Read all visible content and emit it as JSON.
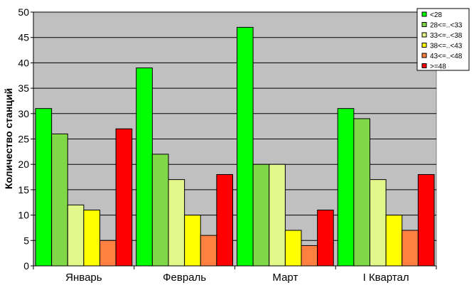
{
  "chart_data": {
    "type": "bar",
    "categories": [
      "Январь",
      "Февраль",
      "Март",
      "I Квартал"
    ],
    "series": [
      {
        "name": "<28",
        "color": "#00ff00",
        "values": [
          31,
          39,
          47,
          31
        ]
      },
      {
        "name": "28<=..<33",
        "color": "#80d848",
        "values": [
          26,
          22,
          20,
          29
        ]
      },
      {
        "name": "33<=..<38",
        "color": "#e2f88a",
        "values": [
          12,
          17,
          20,
          17
        ]
      },
      {
        "name": "38<=..<43",
        "color": "#ffff00",
        "values": [
          11,
          10,
          7,
          10
        ]
      },
      {
        "name": "43<=..<48",
        "color": "#ff8040",
        "values": [
          5,
          6,
          4,
          7
        ]
      },
      {
        "name": ">=48",
        "color": "#ff0000",
        "values": [
          27,
          18,
          11,
          18
        ]
      }
    ],
    "title": "",
    "xlabel": "",
    "ylabel": "Количество станций",
    "ylim": [
      0,
      50
    ],
    "yticks": [
      "0",
      "5",
      "10",
      "15",
      "20",
      "25",
      "30",
      "35",
      "40",
      "45",
      "50"
    ],
    "grid": true,
    "legend_position": "top-right",
    "plot_background": "#c0c0c0"
  }
}
